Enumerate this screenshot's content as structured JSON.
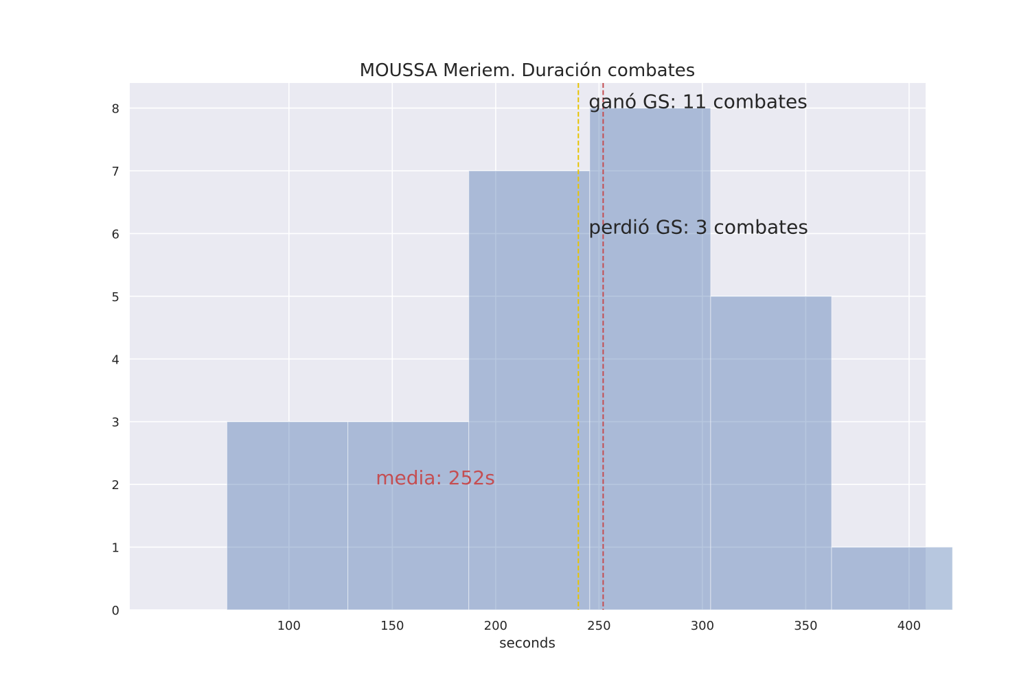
{
  "chart_data": {
    "type": "bar",
    "subtype": "histogram",
    "title": "MOUSSA Meriem. Duración combates",
    "xlabel": "seconds",
    "ylabel": "",
    "xlim": [
      23,
      408
    ],
    "ylim": [
      0,
      8.4
    ],
    "xticks": [
      100,
      150,
      200,
      250,
      300,
      350,
      400
    ],
    "yticks": [
      0,
      1,
      2,
      3,
      4,
      5,
      6,
      7,
      8
    ],
    "grid": true,
    "bins": [
      {
        "x0": 70,
        "x1": 128.5,
        "count": 3
      },
      {
        "x0": 128.5,
        "x1": 187,
        "count": 3
      },
      {
        "x0": 187,
        "x1": 245.5,
        "count": 7
      },
      {
        "x0": 245.5,
        "x1": 304,
        "count": 8
      },
      {
        "x0": 304,
        "x1": 362.5,
        "count": 5
      },
      {
        "x0": 362.5,
        "x1": 421,
        "count": 1
      }
    ],
    "vlines": [
      {
        "x": 240,
        "color": "#e8c400",
        "style": "dashed"
      },
      {
        "x": 252,
        "color": "#c44e52",
        "style": "dashed"
      }
    ],
    "annotations": [
      {
        "text": "ganó GS: 11 combates",
        "x": 245,
        "y": 8,
        "color": "#262626"
      },
      {
        "text": "perdió GS: 3 combates",
        "x": 245,
        "y": 6,
        "color": "#262626"
      },
      {
        "text": "media: 252s",
        "x": 142,
        "y": 2,
        "color": "#c44e52"
      }
    ],
    "colors": {
      "plot_background": "#eaeaf2",
      "bar_fill": "#4c72b0",
      "bar_alpha": 0.4,
      "grid": "#ffffff"
    }
  }
}
